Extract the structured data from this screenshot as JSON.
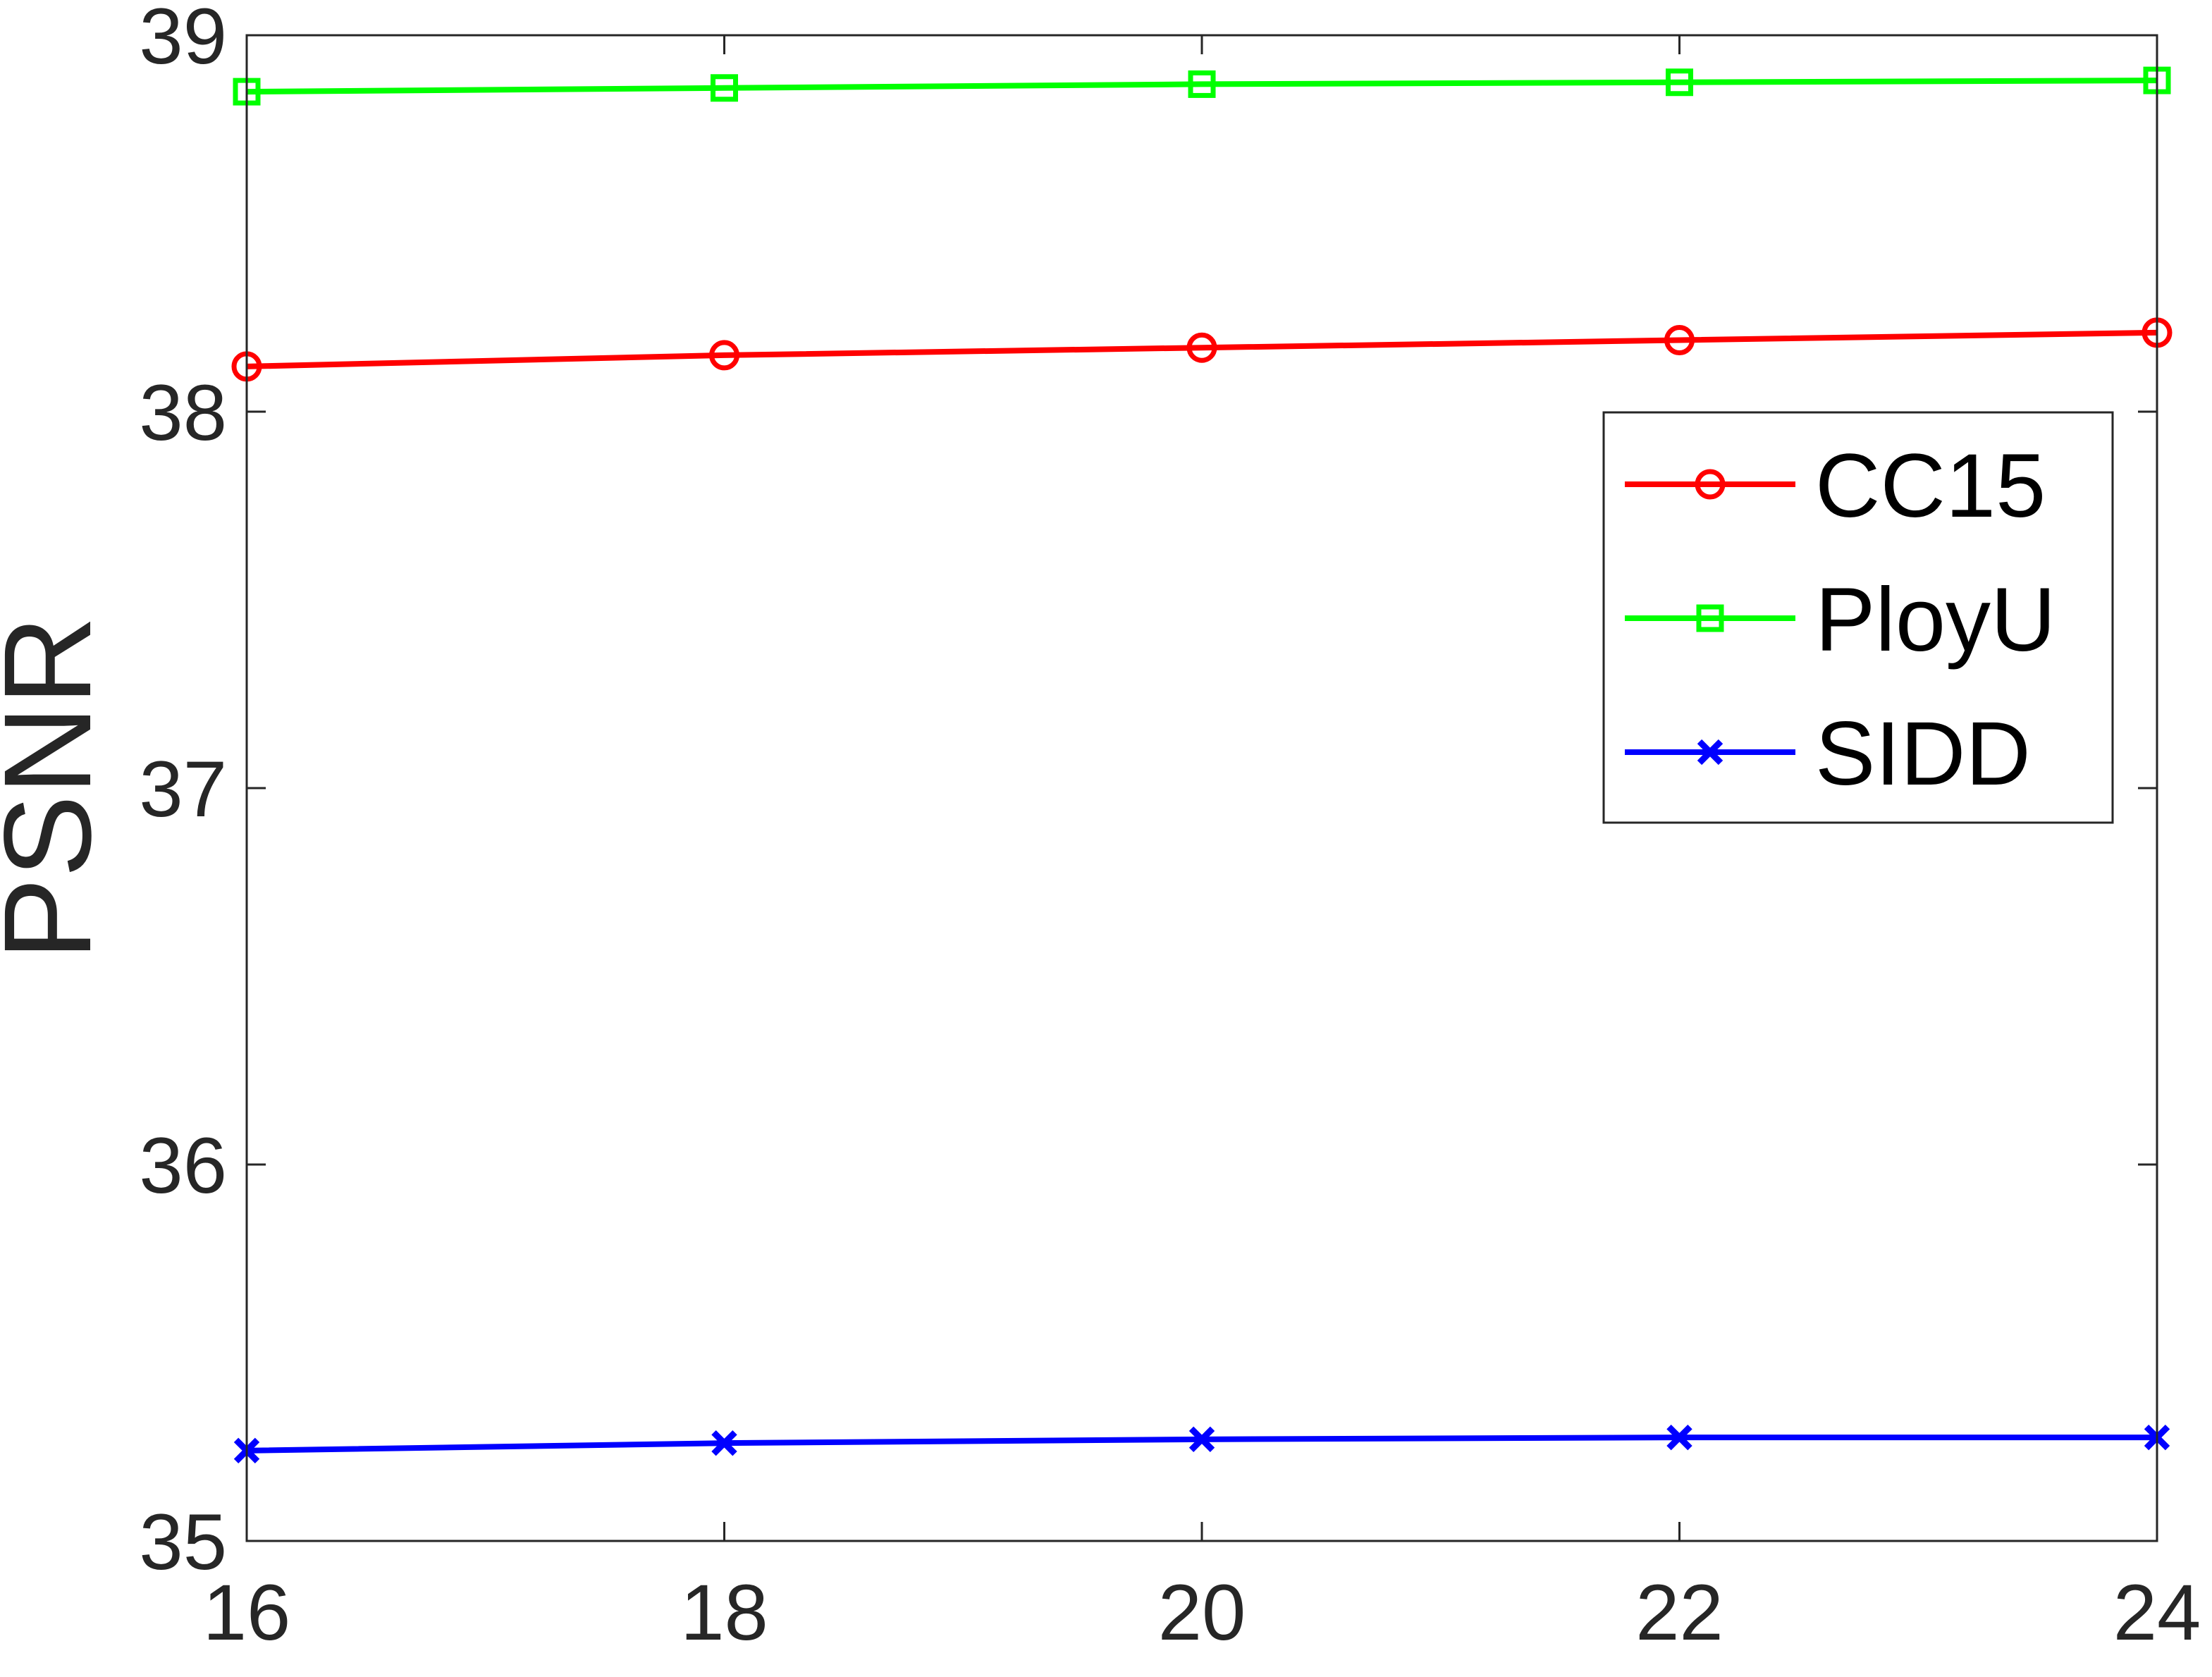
{
  "chart_data": {
    "type": "line",
    "title": "",
    "xlabel": "",
    "ylabel": "PSNR",
    "x": [
      16,
      18,
      20,
      22,
      24
    ],
    "xlim": [
      16,
      24
    ],
    "ylim": [
      35,
      39
    ],
    "xticks": [
      16,
      18,
      20,
      22,
      24
    ],
    "yticks": [
      35,
      36,
      37,
      38,
      39
    ],
    "grid": false,
    "legend_position": "right",
    "series": [
      {
        "name": "CC15",
        "color": "#ff0000",
        "marker": "circle",
        "values": [
          38.12,
          38.15,
          38.17,
          38.19,
          38.21
        ]
      },
      {
        "name": "PloyU",
        "color": "#00ff00",
        "marker": "square",
        "values": [
          38.85,
          38.86,
          38.87,
          38.875,
          38.88
        ]
      },
      {
        "name": "SIDD",
        "color": "#0000ff",
        "marker": "x",
        "values": [
          35.24,
          35.26,
          35.27,
          35.275,
          35.275
        ]
      }
    ]
  }
}
